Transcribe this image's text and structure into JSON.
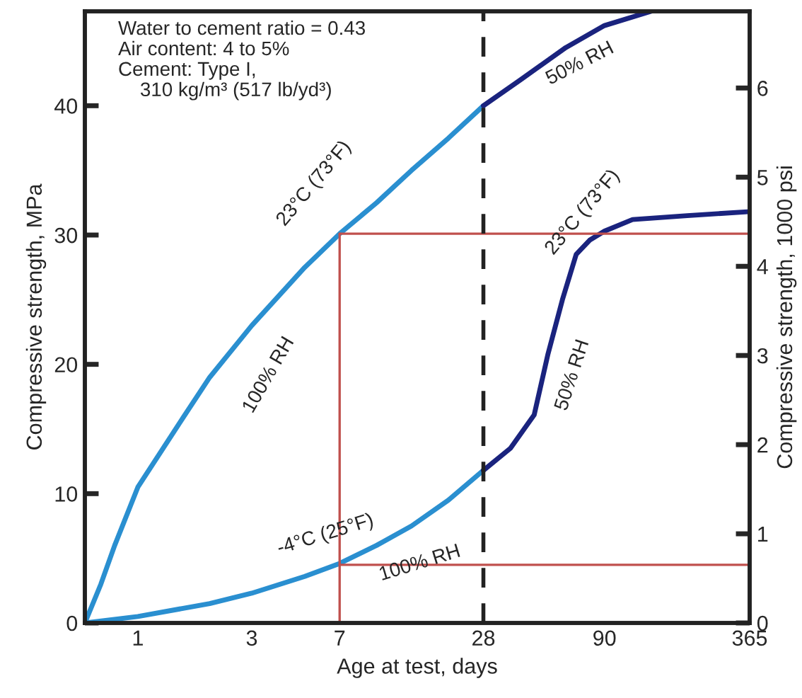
{
  "chart_data": {
    "type": "line",
    "xlabel": "Age at test, days",
    "ylabel": "Compressive strength, MPa",
    "y2label": "Compressive strength, 1000 psi",
    "log": "x",
    "xlim": [
      0.6,
      365
    ],
    "xticks": [
      1,
      3,
      7,
      28,
      90,
      365
    ],
    "ylim": [
      0,
      47.3
    ],
    "yticks": [
      0,
      10,
      20,
      30,
      40
    ],
    "y2lim": [
      0,
      6.86
    ],
    "y2ticks": [
      0,
      1,
      2,
      3,
      4,
      5,
      6
    ],
    "grid": false,
    "legend": false,
    "line_style": "solid",
    "marker": "none",
    "series": [
      {
        "color": "#2a8fd0",
        "x": [
          0.6,
          0.7,
          0.8,
          1,
          1.5,
          2,
          3,
          5,
          7,
          10,
          14,
          20,
          28
        ],
        "values": [
          0,
          3,
          6,
          10.5,
          15.5,
          19,
          23,
          27.5,
          30.1,
          32.5,
          35,
          37.5,
          40
        ]
      },
      {
        "color": "#1a237e",
        "x": [
          28,
          40,
          62,
          90,
          141
        ],
        "values": [
          40,
          42,
          44.5,
          46.2,
          47.3
        ]
      },
      {
        "color": "#2a8fd0",
        "x": [
          0.6,
          1,
          2,
          3,
          5,
          7,
          10,
          14,
          20,
          28
        ],
        "values": [
          0,
          0.5,
          1.5,
          2.3,
          3.6,
          4.6,
          6,
          7.5,
          9.5,
          11.8
        ]
      },
      {
        "color": "#1a237e",
        "x": [
          28,
          36.3,
          45.7,
          52.2,
          60,
          68.5,
          78,
          90,
          118,
          200,
          358
        ],
        "values": [
          11.8,
          13.5,
          16.1,
          20.8,
          25,
          28.5,
          29.6,
          30.3,
          31.2,
          31.5,
          31.8
        ]
      },
      {
        "color": "#c0504d",
        "x": [
          7,
          7
        ],
        "values": [
          0,
          30.1
        ]
      },
      {
        "color": "#c0504d",
        "x": [
          7,
          365
        ],
        "values": [
          30.1,
          30.1
        ]
      },
      {
        "color": "#c0504d",
        "x": [
          7,
          365
        ],
        "values": [
          4.5,
          4.5
        ]
      }
    ],
    "ref_lines": [
      {
        "axis": "x",
        "value": 28,
        "color": "#222222",
        "line_style": "dashed"
      }
    ],
    "annotations": [
      "Water to cement ratio = 0.43\nAir content: 4 to 5%\nCement: Type I,\n    310 kg/m³ (517 lb/yd³)",
      "23°C (73°F)",
      "100% RH",
      "50% RH",
      "23°C (73°F)",
      "50% RH",
      "-4°C (25°F)",
      "100% RH"
    ]
  }
}
